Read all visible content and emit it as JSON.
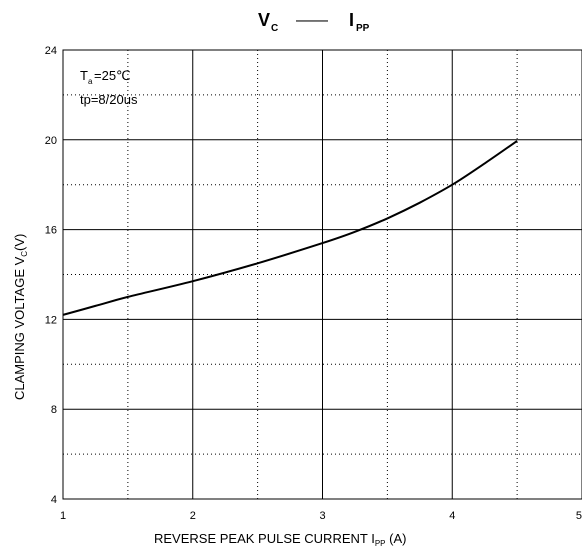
{
  "title": {
    "left_main": "V",
    "left_sub": "C",
    "dash": "——",
    "right_main": "I",
    "right_sub": "PP"
  },
  "ylabel": {
    "main": "CLAMPING VOLTAGE  V",
    "sub": "C",
    "tail": "(V)"
  },
  "xlabel": {
    "main": "REVERSE PEAK PULSE CURRENT   I",
    "sub": "PP",
    "tail": " (A)"
  },
  "annotations": {
    "line1_main": "T",
    "line1_sub": "a",
    "line1_tail": "=25℃",
    "line2": "tp=8/20us"
  },
  "chart_data": {
    "type": "line",
    "xlim": [
      1,
      5
    ],
    "ylim": [
      4,
      24
    ],
    "x_ticks": [
      1,
      2,
      3,
      4,
      5
    ],
    "y_ticks": [
      4,
      8,
      12,
      16,
      20,
      24
    ],
    "grid": true,
    "series": [
      {
        "x": [
          1.0,
          1.25,
          1.5,
          2.0,
          2.5,
          3.0,
          3.25,
          3.5,
          3.75,
          4.0,
          4.25,
          4.5
        ],
        "y": [
          12.2,
          12.6,
          13.0,
          13.7,
          14.5,
          15.4,
          15.9,
          16.5,
          17.2,
          18.0,
          18.95,
          19.95
        ]
      }
    ]
  }
}
